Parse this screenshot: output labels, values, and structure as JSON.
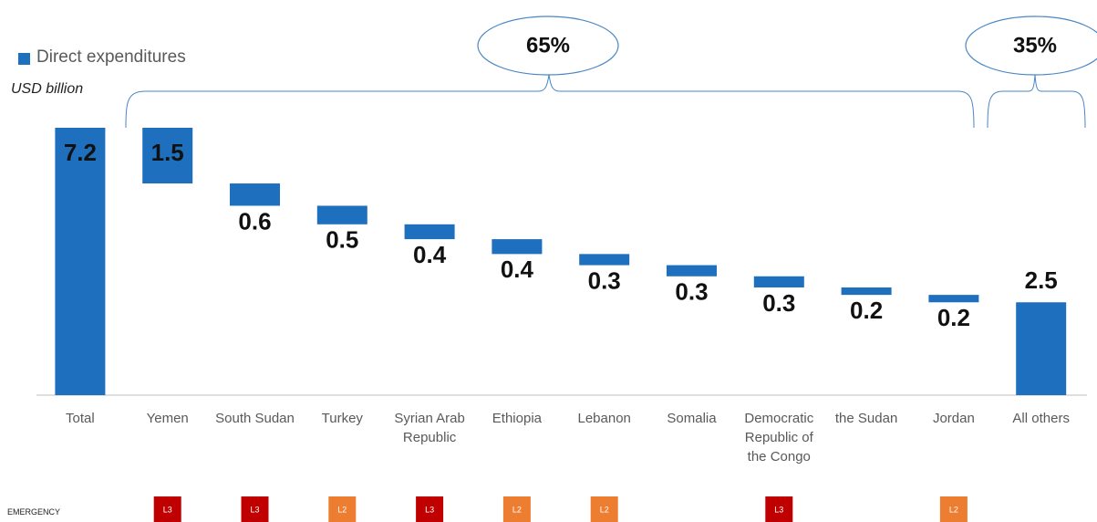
{
  "chart_data": {
    "type": "waterfall",
    "legend": "Direct expenditures",
    "unit_label": "USD billion",
    "color": "#1f6fbf",
    "categories": [
      "Total",
      "Yemen",
      "South Sudan",
      "Turkey",
      "Syrian Arab Republic",
      "Ethiopia",
      "Lebanon",
      "Somalia",
      "Democratic Republic of the Congo",
      "the Sudan",
      "Jordan",
      "All others"
    ],
    "values": [
      7.2,
      1.5,
      0.6,
      0.5,
      0.4,
      0.4,
      0.3,
      0.3,
      0.3,
      0.2,
      0.2,
      2.5
    ],
    "annotations": [
      "65%",
      "35%"
    ],
    "emergency_label": "EMERGENCY",
    "emergency_levels": [
      null,
      "L3",
      "L3",
      "L2",
      "L3",
      "L2",
      "L2",
      null,
      "L3",
      null,
      "L2",
      null
    ],
    "emergency_colors": {
      "L3": "#c00000",
      "L2": "#ed7d31"
    }
  }
}
